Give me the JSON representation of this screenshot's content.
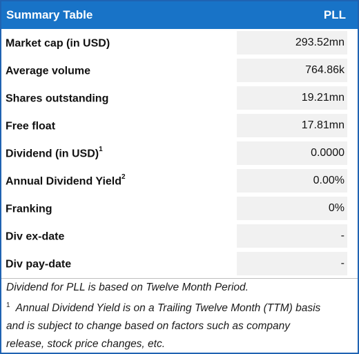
{
  "header": {
    "title": "Summary Table",
    "ticker": "PLL"
  },
  "rows": [
    {
      "label": "Market cap (in USD)",
      "sup": "",
      "value": "293.52mn"
    },
    {
      "label": "Average volume",
      "sup": "",
      "value": "764.86k"
    },
    {
      "label": "Shares outstanding",
      "sup": "",
      "value": "19.21mn"
    },
    {
      "label": "Free float",
      "sup": "",
      "value": "17.81mn"
    },
    {
      "label": "Dividend (in USD)",
      "sup": "1",
      "value": "0.0000"
    },
    {
      "label": "Annual Dividend Yield",
      "sup": "2",
      "value": "0.00%"
    },
    {
      "label": "Franking",
      "sup": "",
      "value": "0%"
    },
    {
      "label": "Div ex-date",
      "sup": "",
      "value": "-"
    },
    {
      "label": "Div pay-date",
      "sup": "",
      "value": "-"
    }
  ],
  "notes": {
    "line1": "Dividend for PLL is based on Twelve Month Period.",
    "footnote_marker": "1",
    "line2": "Annual Dividend Yield is on a Trailing Twelve Month (TTM) basis",
    "line3": "and is subject to change based on factors such as company",
    "line4": "release, stock price changes, etc."
  },
  "colors": {
    "header_bg": "#1873c7",
    "border": "#1f63b2",
    "value_bg": "#f1f1f1"
  }
}
